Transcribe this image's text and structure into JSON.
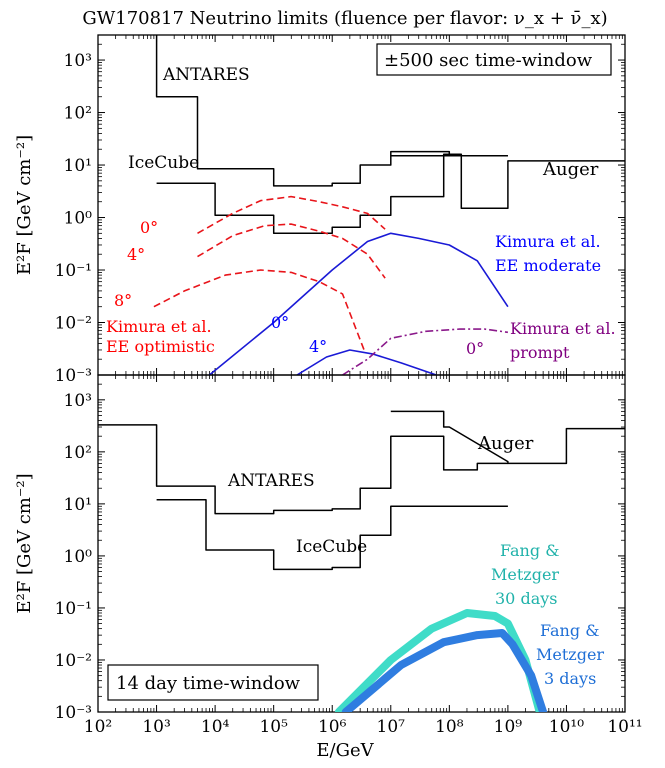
{
  "figure_title": "GW170817 Neutrino limits (fluence per flavor: ν_x + ν̄_x)",
  "xlabel": "E/GeV",
  "colors": {
    "limit": "#000000",
    "kimura_ee_optimistic": "#e8141a",
    "kimura_ee_moderate": "#1a1ad6",
    "kimura_prompt": "#8b1a8b",
    "fang_30d": "#3fdcc8",
    "fang_3d": "#2f7de0"
  },
  "chart_data": [
    {
      "type": "line",
      "panel": "top",
      "window_label": "±500 sec time-window",
      "xscale": "log",
      "yscale": "log",
      "xlim": [
        100,
        100000000000
      ],
      "ylim": [
        0.001,
        3000
      ],
      "ylabel": "E²F  [GeV cm⁻²]",
      "x_ticks": [
        100,
        1000,
        10000,
        100000,
        1000000,
        10000000,
        100000000,
        1000000000,
        10000000000,
        100000000000
      ],
      "y_ticks": [
        0.001,
        0.01,
        0.1,
        1,
        10,
        100,
        1000
      ],
      "series": [
        {
          "name": "ANTARES",
          "style": "step",
          "color_key": "limit",
          "points": [
            [
              1000,
              5000
            ],
            [
              1000,
              200
            ],
            [
              5000,
              200
            ],
            [
              5000,
              8.5
            ],
            [
              100000,
              8.5
            ],
            [
              100000,
              4
            ],
            [
              1000000,
              4
            ],
            [
              1000000,
              4.5
            ],
            [
              3000000,
              4.5
            ],
            [
              3000000,
              10
            ],
            [
              10000000,
              10
            ],
            [
              10000000,
              18
            ],
            [
              100000000,
              18
            ],
            [
              100000000,
              15
            ],
            [
              1000000000,
              15
            ]
          ]
        },
        {
          "name": "IceCube",
          "style": "step",
          "color_key": "limit",
          "points": [
            [
              1000,
              4.5
            ],
            [
              10000,
              4.5
            ],
            [
              10000,
              1.1
            ],
            [
              100000,
              1.1
            ],
            [
              100000,
              0.5
            ],
            [
              1000000,
              0.5
            ],
            [
              1000000,
              0.65
            ],
            [
              3000000,
              0.65
            ],
            [
              3000000,
              1.1
            ],
            [
              10000000,
              1.1
            ],
            [
              10000000,
              2.5
            ],
            [
              80000000,
              2.5
            ],
            [
              80000000,
              16
            ],
            [
              160000000,
              16
            ],
            [
              160000000,
              1.5
            ],
            [
              1000000000,
              1.5
            ],
            [
              1000000000,
              12
            ],
            [
              100000000000,
              12
            ]
          ]
        },
        {
          "name": "Auger",
          "style": "step",
          "color_key": "limit",
          "points": [
            [
              10000000,
              15
            ],
            [
              1000000000,
              15
            ]
          ]
        },
        {
          "name": "Kimura et al. EE optimistic 0°",
          "style": "dashed",
          "color_key": "kimura_ee_optimistic",
          "points": [
            [
              5000,
              0.5
            ],
            [
              20000,
              1.2
            ],
            [
              60000,
              2.1
            ],
            [
              200000,
              2.5
            ],
            [
              600000,
              2.0
            ],
            [
              1500000,
              1.6
            ],
            [
              4000000,
              1.2
            ],
            [
              8000000,
              0.6
            ]
          ]
        },
        {
          "name": "Kimura et al. EE optimistic 4°",
          "style": "dashed",
          "color_key": "kimura_ee_optimistic",
          "points": [
            [
              5000,
              0.18
            ],
            [
              20000,
              0.45
            ],
            [
              70000,
              0.7
            ],
            [
              200000,
              0.75
            ],
            [
              600000,
              0.55
            ],
            [
              1500000,
              0.4
            ],
            [
              4000000,
              0.2
            ],
            [
              8000000,
              0.07
            ]
          ]
        },
        {
          "name": "Kimura et al. EE optimistic 8°",
          "style": "dashed",
          "color_key": "kimura_ee_optimistic",
          "points": [
            [
              900,
              0.02
            ],
            [
              3000,
              0.04
            ],
            [
              15000,
              0.08
            ],
            [
              60000,
              0.1
            ],
            [
              200000,
              0.09
            ],
            [
              600000,
              0.06
            ],
            [
              1500000,
              0.035
            ],
            [
              3500000,
              0.003
            ]
          ]
        },
        {
          "name": "Kimura et al. EE moderate 0°",
          "style": "solid",
          "color_key": "kimura_ee_moderate",
          "points": [
            [
              8000,
              0.001
            ],
            [
              100000,
              0.01
            ],
            [
              1000000,
              0.1
            ],
            [
              4000000,
              0.35
            ],
            [
              10000000,
              0.5
            ],
            [
              30000000,
              0.4
            ],
            [
              100000000,
              0.3
            ],
            [
              300000000,
              0.15
            ],
            [
              1000000000,
              0.02
            ]
          ]
        },
        {
          "name": "Kimura et al. EE moderate 4°",
          "style": "solid",
          "color_key": "kimura_ee_moderate",
          "points": [
            [
              250000,
              0.001
            ],
            [
              800000,
              0.0022
            ],
            [
              2000000,
              0.003
            ],
            [
              5000000,
              0.0025
            ],
            [
              15000000,
              0.0017
            ],
            [
              60000000,
              0.001
            ]
          ]
        },
        {
          "name": "Kimura et al. prompt 0°",
          "style": "dashdot",
          "color_key": "kimura_prompt",
          "points": [
            [
              1500000,
              0.001
            ],
            [
              4000000,
              0.002
            ],
            [
              10000000,
              0.005
            ],
            [
              40000000,
              0.0068
            ],
            [
              150000000,
              0.0075
            ],
            [
              400000000,
              0.0075
            ],
            [
              1000000000,
              0.0065
            ]
          ]
        }
      ],
      "annotations": [
        {
          "text": "ANTARES"
        },
        {
          "text": "IceCube"
        },
        {
          "text": "Auger"
        },
        {
          "text": "0°"
        },
        {
          "text": "4°"
        },
        {
          "text": "8°"
        },
        {
          "text": "Kimura et al."
        },
        {
          "text": "EE optimistic"
        },
        {
          "text": "Kimura et al."
        },
        {
          "text": "EE moderate"
        },
        {
          "text": "0°"
        },
        {
          "text": "4°"
        },
        {
          "text": "Kimura et al."
        },
        {
          "text": "prompt"
        },
        {
          "text": "0°"
        }
      ]
    },
    {
      "type": "line",
      "panel": "bottom",
      "window_label": "14 day time-window",
      "xscale": "log",
      "yscale": "log",
      "xlim": [
        100,
        100000000000
      ],
      "ylim": [
        0.001,
        3000
      ],
      "ylabel": "E²F  [GeV cm⁻²]",
      "x_ticks": [
        100,
        1000,
        10000,
        100000,
        1000000,
        10000000,
        100000000,
        1000000000,
        10000000000,
        100000000000
      ],
      "y_ticks": [
        0.001,
        0.01,
        0.1,
        1,
        10,
        100,
        1000
      ],
      "series": [
        {
          "name": "ANTARES",
          "style": "step",
          "color_key": "limit",
          "points": [
            [
              100,
              330
            ],
            [
              1000,
              330
            ],
            [
              1000,
              22
            ],
            [
              10000,
              22
            ],
            [
              10000,
              6.5
            ],
            [
              100000,
              6.5
            ],
            [
              100000,
              7.5
            ],
            [
              1000000,
              7.5
            ],
            [
              1000000,
              8
            ],
            [
              3000000,
              8
            ],
            [
              3000000,
              20
            ],
            [
              10000000,
              20
            ],
            [
              10000000,
              200
            ],
            [
              80000000,
              200
            ],
            [
              80000000,
              45
            ],
            [
              300000000,
              45
            ],
            [
              300000000,
              60
            ],
            [
              1000000000,
              60
            ]
          ]
        },
        {
          "name": "IceCube",
          "style": "step",
          "color_key": "limit",
          "points": [
            [
              1000,
              12
            ],
            [
              7000,
              12
            ],
            [
              7000,
              1.3
            ],
            [
              100000,
              1.3
            ],
            [
              100000,
              0.55
            ],
            [
              1000000,
              0.55
            ],
            [
              1000000,
              0.6
            ],
            [
              3000000,
              0.6
            ],
            [
              3000000,
              2.5
            ],
            [
              10000000,
              2.5
            ],
            [
              10000000,
              9
            ],
            [
              1000000000,
              9
            ]
          ]
        },
        {
          "name": "Auger",
          "style": "step",
          "color_key": "limit",
          "points": [
            [
              10000000,
              600
            ],
            [
              80000000,
              600
            ],
            [
              80000000,
              300
            ],
            [
              100000000,
              300
            ],
            [
              1000000000,
              65
            ],
            [
              1000000000,
              60
            ],
            [
              10000000000,
              60
            ],
            [
              10000000000,
              280
            ],
            [
              100000000000,
              280
            ]
          ]
        },
        {
          "name": "Fang & Metzger 30 days",
          "style": "thick",
          "color_key": "fang_30d",
          "points": [
            [
              1300000,
              0.001
            ],
            [
              10000000,
              0.01
            ],
            [
              50000000,
              0.04
            ],
            [
              200000000,
              0.08
            ],
            [
              600000000,
              0.07
            ],
            [
              1000000000,
              0.05
            ],
            [
              2000000000,
              0.01
            ],
            [
              3500000000,
              0.001
            ]
          ]
        },
        {
          "name": "Fang & Metzger 3 days",
          "style": "thick",
          "color_key": "fang_3d",
          "points": [
            [
              1700000,
              0.001
            ],
            [
              15000000,
              0.008
            ],
            [
              80000000,
              0.022
            ],
            [
              300000000,
              0.03
            ],
            [
              800000000,
              0.033
            ],
            [
              1200000000,
              0.02
            ],
            [
              2500000000,
              0.005
            ],
            [
              4000000000,
              0.001
            ]
          ]
        }
      ],
      "annotations": [
        {
          "text": "Auger"
        },
        {
          "text": "ANTARES"
        },
        {
          "text": "IceCube"
        },
        {
          "text": "Fang &"
        },
        {
          "text": "Metzger"
        },
        {
          "text": "30 days"
        },
        {
          "text": "Fang &"
        },
        {
          "text": "Metzger"
        },
        {
          "text": "3 days"
        }
      ]
    }
  ]
}
